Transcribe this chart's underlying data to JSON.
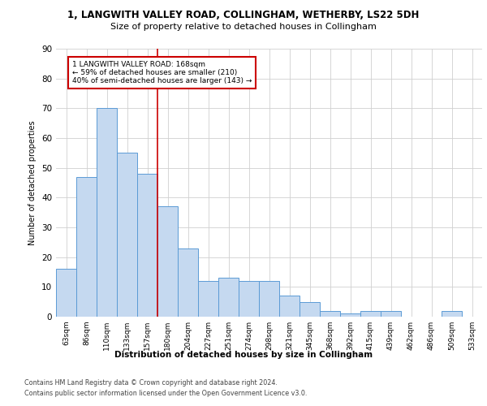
{
  "title1": "1, LANGWITH VALLEY ROAD, COLLINGHAM, WETHERBY, LS22 5DH",
  "title2": "Size of property relative to detached houses in Collingham",
  "xlabel": "Distribution of detached houses by size in Collingham",
  "ylabel": "Number of detached properties",
  "categories": [
    "63sqm",
    "86sqm",
    "110sqm",
    "133sqm",
    "157sqm",
    "180sqm",
    "204sqm",
    "227sqm",
    "251sqm",
    "274sqm",
    "298sqm",
    "321sqm",
    "345sqm",
    "368sqm",
    "392sqm",
    "415sqm",
    "439sqm",
    "462sqm",
    "486sqm",
    "509sqm",
    "533sqm"
  ],
  "values": [
    16,
    47,
    70,
    55,
    48,
    37,
    23,
    12,
    13,
    12,
    12,
    7,
    5,
    2,
    1,
    2,
    2,
    0,
    0,
    2,
    0
  ],
  "bar_color": "#c5d9f0",
  "bar_edge_color": "#5b9bd5",
  "ylim": [
    0,
    90
  ],
  "yticks": [
    0,
    10,
    20,
    30,
    40,
    50,
    60,
    70,
    80,
    90
  ],
  "annotation_text": "1 LANGWITH VALLEY ROAD: 168sqm\n← 59% of detached houses are smaller (210)\n40% of semi-detached houses are larger (143) →",
  "annotation_box_color": "#ffffff",
  "annotation_box_edge_color": "#cc0000",
  "vline_color": "#cc0000",
  "footer1": "Contains HM Land Registry data © Crown copyright and database right 2024.",
  "footer2": "Contains public sector information licensed under the Open Government Licence v3.0.",
  "background_color": "#ffffff",
  "grid_color": "#d0d0d0"
}
